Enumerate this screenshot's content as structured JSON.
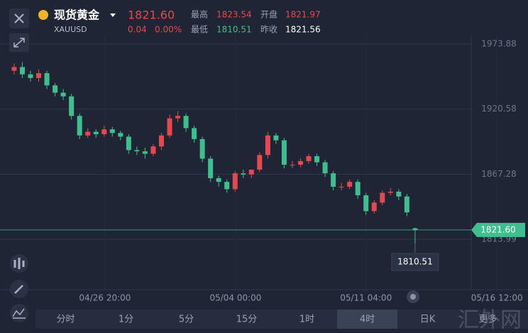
{
  "quote": {
    "title": "现货黄金",
    "symbol": "XAUUSD",
    "price": "1821.60",
    "change": "0.04",
    "change_pct": "0.00%",
    "stats": [
      {
        "label": "最高",
        "value": "1823.54"
      },
      {
        "label": "开盘",
        "value": "1821.97"
      },
      {
        "label": "最低",
        "value": "1810.51"
      },
      {
        "label": "昨收",
        "value": "1821.56"
      }
    ]
  },
  "chart_data": {
    "type": "candlestick",
    "open": [
      1952,
      1955,
      1949,
      1946,
      1950,
      1940,
      1934,
      1931,
      1915,
      1899,
      1902,
      1900,
      1904,
      1901,
      1898,
      1887,
      1886,
      1884,
      1890,
      1899,
      1913,
      1915,
      1905,
      1896,
      1880,
      1864,
      1861,
      1855,
      1868,
      1867,
      1871,
      1883,
      1899,
      1895,
      1875,
      1875,
      1878,
      1882,
      1877,
      1868,
      1857,
      1857,
      1861,
      1850,
      1837,
      1844,
      1852,
      1853,
      1849,
      1823
    ],
    "high": [
      1958,
      1959,
      1952,
      1953,
      1952,
      1942,
      1937,
      1933,
      1917,
      1905,
      1904,
      1907,
      1906,
      1903,
      1900,
      1890,
      1889,
      1892,
      1901,
      1916,
      1919,
      1917,
      1907,
      1898,
      1882,
      1866,
      1863,
      1870,
      1871,
      1870,
      1885,
      1902,
      1901,
      1897,
      1878,
      1880,
      1884,
      1884,
      1879,
      1870,
      1860,
      1863,
      1863,
      1852,
      1846,
      1854,
      1856,
      1855,
      1851,
      1823.54
    ],
    "low": [
      1949,
      1946,
      1943,
      1943,
      1937,
      1931,
      1928,
      1912,
      1896,
      1897,
      1897,
      1898,
      1898,
      1895,
      1884,
      1883,
      1880,
      1882,
      1887,
      1897,
      1910,
      1902,
      1893,
      1877,
      1861,
      1857,
      1852,
      1853,
      1864,
      1864,
      1869,
      1880,
      1892,
      1872,
      1872,
      1873,
      1876,
      1874,
      1865,
      1854,
      1854,
      1855,
      1847,
      1834,
      1835,
      1842,
      1850,
      1846,
      1833,
      1810.51
    ],
    "close": [
      1955,
      1949,
      1946,
      1950,
      1940,
      1934,
      1931,
      1915,
      1899,
      1902,
      1900,
      1904,
      1901,
      1898,
      1887,
      1886,
      1884,
      1890,
      1899,
      1913,
      1915,
      1905,
      1896,
      1880,
      1864,
      1861,
      1855,
      1868,
      1867,
      1871,
      1883,
      1899,
      1895,
      1875,
      1875,
      1878,
      1882,
      1877,
      1868,
      1857,
      1857,
      1861,
      1850,
      1837,
      1844,
      1852,
      1853,
      1849,
      1836,
      1821.6
    ],
    "up_color": "#e5494d",
    "down_color": "#3fbf8f",
    "ylim": [
      1772.7,
      2009.9
    ],
    "yticks": [
      1973.88,
      1920.58,
      1867.28,
      1813.99
    ],
    "xlim": [
      -1.73,
      62.8
    ],
    "xticks": [
      {
        "value": 11.1,
        "label": "04/26 20:00"
      },
      {
        "value": 27.06,
        "label": "05/04 00:00"
      },
      {
        "value": 43.0,
        "label": "05/11 04:00"
      },
      {
        "value": 59.0,
        "label": "05/16 12:00"
      }
    ],
    "grid": true,
    "current_price": {
      "value": 1821.6,
      "label": "1821.60"
    },
    "low_marker": 1810.51
  },
  "tabs": {
    "items": [
      "分时",
      "1分",
      "5分",
      "15分",
      "1时",
      "4时",
      "日K",
      "更多"
    ],
    "active": 5
  },
  "watermark": "汇外网"
}
